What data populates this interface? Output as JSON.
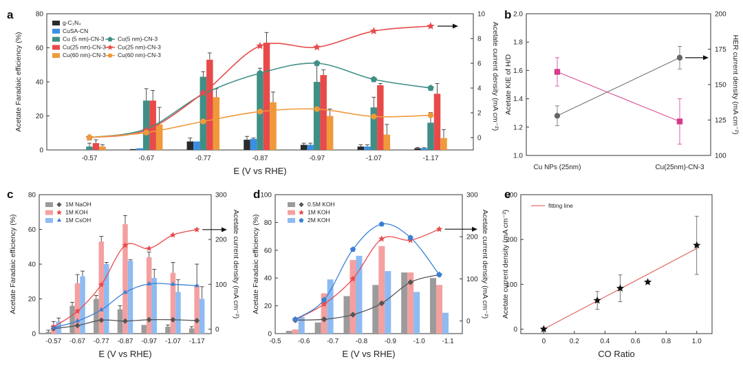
{
  "panel_labels": {
    "a": "a",
    "b": "b",
    "c": "c",
    "d": "d",
    "e": "e"
  },
  "chart_data": [
    {
      "id": "a",
      "type": "bar",
      "xlabel": "E (V vs RHE)",
      "ylabel": "Acetate Faradaic efficiency (%)",
      "y2label": "Acetate current density (mA cm⁻²)",
      "categories": [
        "-0.57",
        "-0.67",
        "-0.77",
        "-0.87",
        "-0.97",
        "-1.07",
        "-1.17"
      ],
      "ylim": [
        0,
        80
      ],
      "yticks": [
        0,
        20,
        40,
        60,
        80
      ],
      "y2lim": [
        -1,
        10
      ],
      "y2ticks": [
        0,
        2,
        4,
        6,
        8,
        10
      ],
      "bar_series": [
        {
          "name": "g-C₃N₄",
          "color": "#2b2b2b",
          "values": [
            0,
            0.5,
            5,
            6,
            3,
            2,
            1
          ],
          "errors": [
            0,
            0,
            2,
            2,
            1,
            1,
            0.5
          ]
        },
        {
          "name": "CuSA-CN",
          "color": "#3a8fe3",
          "values": [
            0,
            1,
            5,
            6.5,
            3,
            2,
            1
          ],
          "errors": [
            0,
            0,
            0,
            0.5,
            1,
            1,
            0.3
          ]
        },
        {
          "name": "Cu (5 nm)-CN-3",
          "color": "#3f8f86",
          "values": [
            2,
            29,
            43,
            45,
            40,
            25,
            16
          ],
          "errors": [
            2,
            7,
            3,
            3,
            11,
            6,
            6
          ]
        },
        {
          "name": "Cu(25 nm)-CN-3",
          "color": "#e84a4a",
          "values": [
            4,
            29,
            53,
            63,
            44,
            38,
            33
          ],
          "errors": [
            2,
            6,
            4,
            6,
            3,
            1,
            6
          ]
        },
        {
          "name": "Cu(60 nm)-CN-3",
          "color": "#f0993a",
          "values": [
            2,
            15,
            31,
            28,
            20,
            9,
            7
          ],
          "errors": [
            1,
            10,
            5,
            6,
            4,
            6,
            5
          ]
        }
      ],
      "line_series": [
        {
          "name": "Cu(5 nm)-CN-3",
          "color": "#3f8f86",
          "marker": "pentagon",
          "values": [
            0,
            0.7,
            3.5,
            5.2,
            6,
            4.7,
            4
          ]
        },
        {
          "name": "Cu(25 nm)-CN-3",
          "color": "#e84a4a",
          "marker": "star",
          "values": [
            0,
            0.6,
            3.6,
            7.4,
            7.3,
            8.6,
            9
          ]
        },
        {
          "name": "Cu(60 nm)-CN-3",
          "color": "#f0993a",
          "marker": "circle",
          "values": [
            0,
            0.4,
            1.3,
            2.1,
            2.3,
            1.7,
            1.8
          ]
        }
      ]
    },
    {
      "id": "b",
      "type": "scatter",
      "xlabel": "",
      "ylabel": "Acetate KIE of H/D",
      "y2label": "HER current density (mA cm⁻²)",
      "categories": [
        "Cu NPs (25nm)",
        "Cu(25nm)-CN-3"
      ],
      "ylim": [
        1.0,
        2.0
      ],
      "yticks": [
        "1.0",
        "1.2",
        "1.4",
        "1.6",
        "1.8",
        "2.0"
      ],
      "y2lim": [
        100,
        200
      ],
      "y2ticks": [
        "100",
        "125",
        "150",
        "175",
        "200"
      ],
      "series": [
        {
          "name": "Acetate KIE of H/D",
          "color": "#666666",
          "marker": "circle",
          "axis": "left",
          "values": [
            1.28,
            1.69
          ],
          "errors": [
            0.07,
            0.08
          ]
        },
        {
          "name": "HER current density",
          "color": "#d63a8a",
          "marker": "square",
          "axis": "right",
          "values": [
            159,
            124
          ],
          "errors": [
            10,
            16
          ]
        }
      ]
    },
    {
      "id": "c",
      "type": "bar",
      "xlabel": "E (V vs RHE)",
      "ylabel": "Acetate Faradaic efficiency (%)",
      "y2label": "Acetate current density (mA cm⁻²)",
      "categories": [
        "-0.57",
        "-0.67",
        "-0.77",
        "-0.87",
        "-0.97",
        "-1.07",
        "-1.17"
      ],
      "ylim": [
        0,
        80
      ],
      "yticks": [
        0,
        20,
        40,
        60,
        80
      ],
      "y2lim": [
        -10,
        300
      ],
      "y2ticks": [
        0,
        100,
        200,
        300
      ],
      "bar_series": [
        {
          "name": "1M NaOH",
          "color": "#9b9b9b",
          "values": [
            1,
            16,
            20,
            14,
            5,
            4,
            3
          ],
          "errors": [
            1,
            2,
            2,
            2,
            0,
            1,
            1
          ]
        },
        {
          "name": "1M KOH",
          "color": "#f4a0a0",
          "values": [
            5,
            29,
            53,
            63,
            44,
            35,
            28
          ],
          "errors": [
            2,
            5,
            3,
            5,
            3,
            6,
            12
          ]
        },
        {
          "name": "1M CsOH",
          "color": "#8dbbf2",
          "values": [
            7,
            33,
            40,
            42,
            32,
            24,
            20
          ],
          "errors": [
            2,
            3,
            1,
            0.5,
            5,
            7,
            7
          ]
        }
      ],
      "line_series": [
        {
          "name": "1M NaOH",
          "color": "#555555",
          "marker": "diamond",
          "values": [
            1,
            8,
            20,
            18,
            21,
            21,
            19
          ]
        },
        {
          "name": "1M KOH",
          "color": "#e84a4a",
          "marker": "star",
          "values": [
            5,
            40,
            99,
            187,
            180,
            210,
            222
          ]
        },
        {
          "name": "1M CsOH",
          "color": "#3a7fd6",
          "marker": "triangle",
          "values": [
            3,
            18,
            43,
            82,
            101,
            100,
            97
          ]
        }
      ]
    },
    {
      "id": "d",
      "type": "bar",
      "xlabel": "E (V vs RHE)",
      "ylabel": "Acetate Faradaic efficiency (%)",
      "y2label": "Acetate current density (mA cm⁻²)",
      "xlim": [
        -0.5,
        -1.15
      ],
      "xticks": [
        "-0.5",
        "-0.6",
        "-0.7",
        "-0.8",
        "-0.9",
        "-1.0",
        "-1.1"
      ],
      "ylim": [
        0,
        100
      ],
      "yticks": [
        0,
        20,
        40,
        60,
        80,
        100
      ],
      "y2lim": [
        -30,
        300
      ],
      "y2ticks": [
        0,
        100,
        200,
        300
      ],
      "bar_series": [
        {
          "name": "0.5M KOH",
          "color": "#9b9b9b",
          "x": [
            -0.57,
            -0.67,
            -0.77,
            -0.87,
            -0.97,
            -1.07
          ],
          "values": [
            2,
            8,
            27,
            35,
            44,
            40
          ]
        },
        {
          "name": "1M KOH",
          "color": "#f4a0a0",
          "x": [
            -0.57,
            -0.67,
            -0.77,
            -0.87,
            -0.97,
            -1.07
          ],
          "values": [
            3,
            29,
            53,
            63,
            44,
            35
          ]
        },
        {
          "name": "2M KOH",
          "color": "#8dbbf2",
          "x": [
            -0.57,
            -0.67,
            -0.77,
            -0.87,
            -0.97,
            -1.07
          ],
          "values": [
            12,
            39,
            56,
            45,
            30,
            15
          ]
        }
      ],
      "line_series": [
        {
          "name": "0.5M KOH",
          "color": "#555555",
          "marker": "diamond",
          "x": [
            -0.57,
            -0.67,
            -0.77,
            -0.87,
            -0.97,
            -1.07
          ],
          "values": [
            2,
            4,
            15,
            42,
            92,
            110
          ]
        },
        {
          "name": "1M KOH",
          "color": "#e84a4a",
          "marker": "star",
          "x": [
            -0.57,
            -0.67,
            -0.77,
            -0.87,
            -0.97,
            -1.07
          ],
          "values": [
            3,
            40,
            100,
            195,
            192,
            218
          ]
        },
        {
          "name": "2M KOH",
          "color": "#3a7fd6",
          "marker": "pentagon",
          "x": [
            -0.57,
            -0.67,
            -0.77,
            -0.87,
            -0.97,
            -1.07
          ],
          "values": [
            4,
            50,
            170,
            230,
            198,
            110
          ]
        }
      ]
    },
    {
      "id": "e",
      "type": "scatter",
      "xlabel": "CO Ratio",
      "ylabel": "Acetate current density (mA cm⁻²)",
      "xlim": [
        -0.15,
        1.1
      ],
      "xticks": [
        "0",
        "0.2",
        "0.4",
        "0.6",
        "0.8",
        "1.0"
      ],
      "ylim": [
        -10,
        300
      ],
      "yticks": [
        "0",
        "100",
        "200",
        "300"
      ],
      "fit_legend": "fitting line",
      "fit": {
        "color": "#e0706a",
        "x": [
          0,
          1.0
        ],
        "y": [
          0,
          180
        ]
      },
      "points": {
        "color": "#111111",
        "marker": "star",
        "x": [
          0,
          0.35,
          0.5,
          0.68,
          1.0
        ],
        "y": [
          0,
          64,
          91,
          105,
          187
        ],
        "errors": [
          0,
          20,
          30,
          0,
          65
        ]
      }
    }
  ]
}
